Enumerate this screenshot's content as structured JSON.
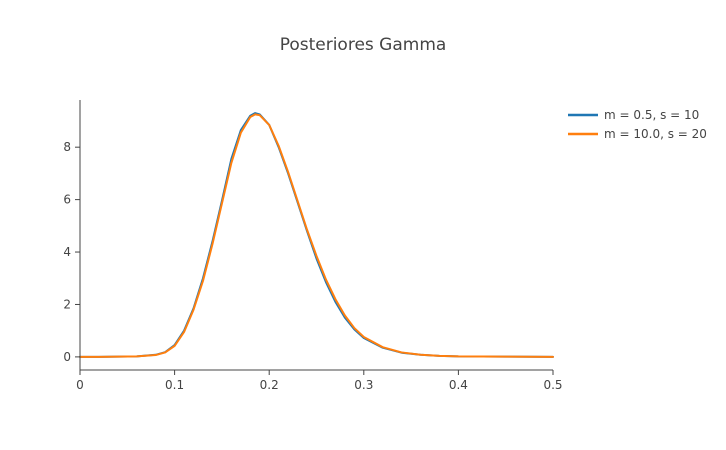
{
  "chart_data": {
    "type": "line",
    "title": "Posteriores Gamma",
    "xlabel": "",
    "ylabel": "",
    "xlim": [
      0,
      0.5
    ],
    "ylim": [
      -0.5,
      9.8
    ],
    "xticks": [
      0,
      0.1,
      0.2,
      0.3,
      0.4,
      0.5
    ],
    "xtick_labels": [
      "0",
      "0.1",
      "0.2",
      "0.3",
      "0.4",
      "0.5"
    ],
    "yticks": [
      0,
      2,
      4,
      6,
      8
    ],
    "ytick_labels": [
      "0",
      "2",
      "4",
      "6",
      "8"
    ],
    "grid": false,
    "legend_position": "top-right",
    "series": [
      {
        "name": "m = 0.5, s = 10",
        "color": "#1f77b4",
        "x": [
          0,
          0.02,
          0.04,
          0.06,
          0.08,
          0.09,
          0.1,
          0.11,
          0.12,
          0.13,
          0.14,
          0.15,
          0.16,
          0.17,
          0.18,
          0.185,
          0.19,
          0.2,
          0.21,
          0.22,
          0.23,
          0.24,
          0.25,
          0.26,
          0.27,
          0.28,
          0.29,
          0.3,
          0.32,
          0.34,
          0.36,
          0.38,
          0.4,
          0.45,
          0.5
        ],
        "y": [
          0,
          0,
          0.01,
          0.02,
          0.08,
          0.18,
          0.45,
          1.0,
          1.85,
          3.0,
          4.4,
          5.95,
          7.55,
          8.65,
          9.2,
          9.3,
          9.25,
          8.85,
          8.0,
          7.0,
          5.9,
          4.8,
          3.75,
          2.85,
          2.1,
          1.5,
          1.05,
          0.72,
          0.35,
          0.16,
          0.08,
          0.04,
          0.02,
          0.01,
          0
        ]
      },
      {
        "name": "m = 10.0, s = 20",
        "color": "#ff7f0e",
        "x": [
          0,
          0.02,
          0.04,
          0.06,
          0.08,
          0.09,
          0.1,
          0.11,
          0.12,
          0.13,
          0.14,
          0.15,
          0.16,
          0.17,
          0.18,
          0.185,
          0.19,
          0.2,
          0.21,
          0.22,
          0.23,
          0.24,
          0.25,
          0.26,
          0.27,
          0.28,
          0.29,
          0.3,
          0.32,
          0.34,
          0.36,
          0.38,
          0.4,
          0.45,
          0.5
        ],
        "y": [
          0,
          0,
          0.01,
          0.02,
          0.07,
          0.17,
          0.42,
          0.95,
          1.8,
          2.9,
          4.3,
          5.85,
          7.4,
          8.55,
          9.15,
          9.25,
          9.22,
          8.85,
          8.05,
          7.05,
          5.95,
          4.85,
          3.85,
          2.95,
          2.2,
          1.58,
          1.1,
          0.76,
          0.37,
          0.17,
          0.08,
          0.04,
          0.02,
          0.01,
          0
        ]
      }
    ]
  }
}
